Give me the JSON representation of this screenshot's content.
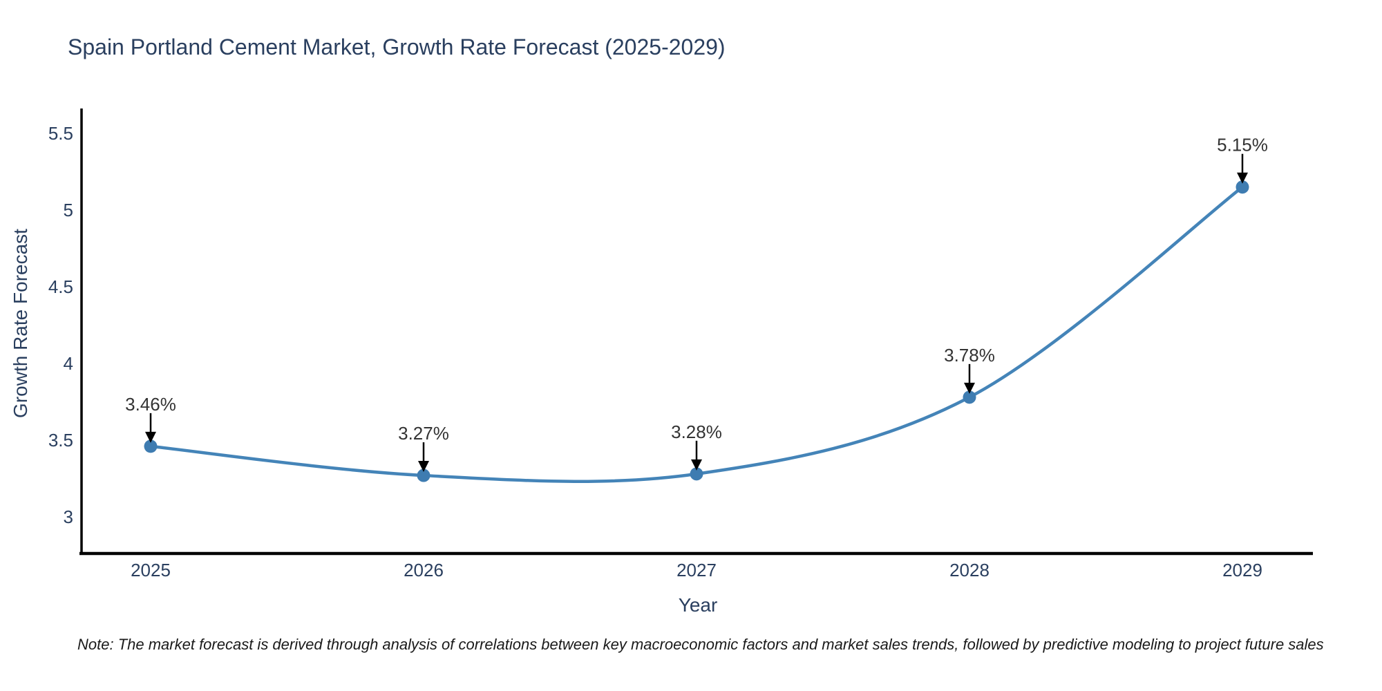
{
  "note": "Note: The market forecast is derived through analysis of correlations between key macroeconomic factors and market sales trends, followed by predictive modeling to project future sales",
  "chart_data": {
    "type": "line",
    "title": "Spain Portland Cement Market, Growth Rate Forecast (2025-2029)",
    "xlabel": "Year",
    "ylabel": "Growth Rate Forecast",
    "x": [
      2025,
      2026,
      2027,
      2028,
      2029
    ],
    "series": [
      {
        "name": "Growth Rate Forecast",
        "values": [
          3.46,
          3.27,
          3.28,
          3.78,
          5.15
        ]
      }
    ],
    "point_labels": [
      "3.46%",
      "3.27%",
      "3.28%",
      "3.78%",
      "5.15%"
    ],
    "yticks": [
      3,
      3.5,
      4,
      4.5,
      5,
      5.5
    ],
    "ytick_labels": [
      "3",
      "3.5",
      "4",
      "4.5",
      "5",
      "5.5"
    ],
    "ylim": [
      2.76,
      5.66
    ],
    "grid": false,
    "legend": "none",
    "curve": "spline",
    "annotation_arrows": "down",
    "colors": {
      "line": "#4484b8",
      "marker": "#3e7cb1",
      "axis": "#000000",
      "tick_text": "#2a3f5f",
      "title_text": "#2a3f5f",
      "annotation_text": "#333333",
      "note_text": "#1a1a1a",
      "background": "#ffffff"
    }
  }
}
